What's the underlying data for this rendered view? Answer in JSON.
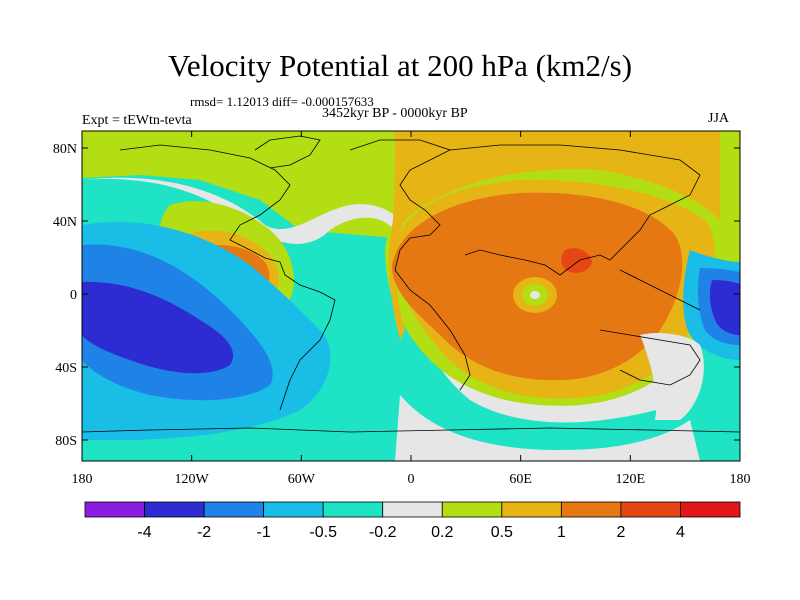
{
  "title": "Velocity Potential at 200 hPa (km2/s)",
  "stats": "rmsd= 1.12013 diff= -0.000157633",
  "experiment": "Expt = tEWtn-tevta",
  "period": "3452kyr BP - 0000kyr BP",
  "season": "JJA",
  "axes": {
    "lat_ticks": [
      "80N",
      "40N",
      "0",
      "40S",
      "80S"
    ],
    "lon_ticks": [
      "180",
      "120W",
      "60W",
      "0",
      "60E",
      "120E",
      "180"
    ]
  },
  "colorbar": {
    "labels": [
      "-4",
      "-2",
      "-1",
      "-0.5",
      "-0.2",
      "0.2",
      "0.5",
      "1",
      "2",
      "4"
    ],
    "colors": [
      "#8a1ee0",
      "#2c2cd2",
      "#1f82e6",
      "#19bde6",
      "#1ee3c4",
      "#e6e6e6",
      "#b4de14",
      "#e6b414",
      "#e67814",
      "#e64614",
      "#e01818"
    ]
  },
  "colors": {
    "land_outline": "#000000",
    "frame": "#000000"
  }
}
